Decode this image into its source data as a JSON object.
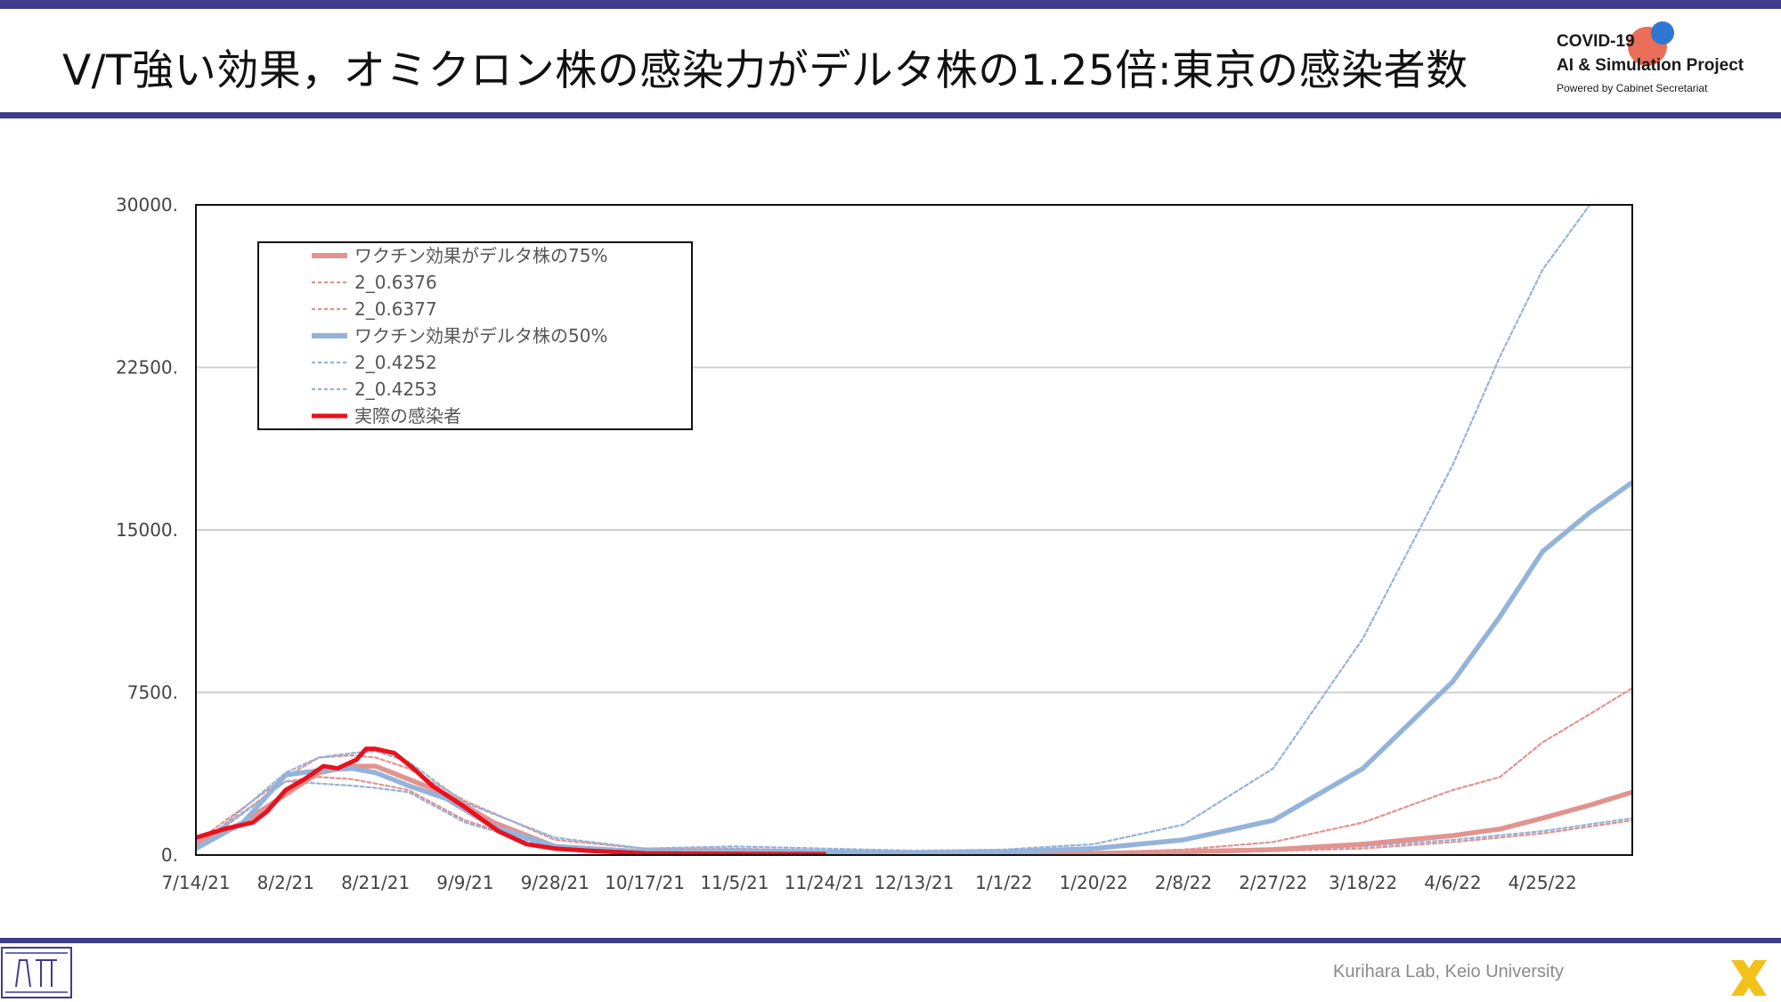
{
  "header": {
    "title": "V/T強い効果，オミクロン株の感染力がデルタ株の1.25倍:東京の感染者数",
    "logo_line1": "COVID-19",
    "logo_line2": "AI & Simulation Project",
    "logo_line3": "Powered by Cabinet Secretariat"
  },
  "footer": {
    "credit": "Kurihara Lab, Keio University"
  },
  "colors": {
    "accent_bar": "#3f3c8c",
    "red_series": "#e08f8c",
    "blue_series": "#97b5d9",
    "actual": "#e8111d"
  },
  "chart_data": {
    "type": "line",
    "title": "",
    "xlabel": "",
    "ylabel": "",
    "ylim": [
      0,
      30000
    ],
    "yticks": [
      "0.",
      "7500.",
      "15000.",
      "22500.",
      "30000."
    ],
    "ytick_values": [
      0,
      7500,
      15000,
      22500,
      30000
    ],
    "xticks": [
      "7/14/21",
      "8/2/21",
      "8/21/21",
      "9/9/21",
      "9/28/21",
      "10/17/21",
      "11/5/21",
      "11/24/21",
      "12/13/21",
      "1/1/22",
      "1/20/22",
      "2/8/22",
      "2/27/22",
      "3/18/22",
      "4/6/22",
      "4/25/22"
    ],
    "x_start": "7/14/21",
    "x_end": "5/14/22",
    "grid": true,
    "legend_position": "top-left",
    "series": [
      {
        "name": "ワクチン効果がデルタ株の75%",
        "color": "#e3938f",
        "style": "solid",
        "x": [
          "7/14/21",
          "7/24/21",
          "8/2/21",
          "8/9/21",
          "8/16/21",
          "8/21/21",
          "8/28/21",
          "9/5/21",
          "9/15/21",
          "9/28/21",
          "10/17/21",
          "11/5/21",
          "11/24/21",
          "12/13/21",
          "1/1/22",
          "1/20/22",
          "2/8/22",
          "2/27/22",
          "3/18/22",
          "4/6/22",
          "4/16/22",
          "4/25/22",
          "5/5/22",
          "5/14/22"
        ],
        "y": [
          500,
          1500,
          2800,
          3800,
          4100,
          4100,
          3500,
          2800,
          1500,
          400,
          100,
          100,
          80,
          60,
          60,
          80,
          150,
          250,
          500,
          900,
          1200,
          1700,
          2300,
          2900
        ]
      },
      {
        "name": "2_0.6376",
        "color": "#e3938f",
        "style": "dotted",
        "x": [
          "7/14/21",
          "8/2/21",
          "8/9/21",
          "8/16/21",
          "8/21/21",
          "8/28/21",
          "9/9/21",
          "9/28/21",
          "10/17/21",
          "11/5/21",
          "11/24/21",
          "12/13/21",
          "1/1/22",
          "1/20/22",
          "2/8/22",
          "2/27/22",
          "3/18/22",
          "4/6/22",
          "4/16/22",
          "4/25/22",
          "5/5/22",
          "5/14/22"
        ],
        "y": [
          600,
          3600,
          4500,
          4600,
          4500,
          4000,
          2500,
          700,
          300,
          300,
          200,
          100,
          80,
          120,
          250,
          600,
          1500,
          3000,
          3600,
          5200,
          6500,
          7700
        ]
      },
      {
        "name": "2_0.6377",
        "color": "#e3938f",
        "style": "dotted",
        "x": [
          "7/14/21",
          "8/2/21",
          "8/9/21",
          "8/16/21",
          "8/21/21",
          "8/28/21",
          "9/9/21",
          "9/28/21",
          "10/17/21",
          "11/5/21",
          "11/24/21",
          "12/13/21",
          "1/1/22",
          "1/20/22",
          "2/8/22",
          "2/27/22",
          "3/18/22",
          "4/6/22",
          "4/25/22",
          "5/14/22"
        ],
        "y": [
          400,
          3400,
          3600,
          3500,
          3300,
          3000,
          1600,
          300,
          100,
          100,
          80,
          60,
          50,
          60,
          100,
          180,
          300,
          600,
          1000,
          1600
        ]
      },
      {
        "name": "ワクチン効果がデルタ株の50%",
        "color": "#94b3da",
        "style": "solid",
        "x": [
          "7/14/21",
          "7/24/21",
          "8/2/21",
          "8/9/21",
          "8/16/21",
          "8/21/21",
          "8/28/21",
          "9/5/21",
          "9/15/21",
          "9/28/21",
          "10/17/21",
          "11/5/21",
          "11/24/21",
          "12/13/21",
          "1/1/22",
          "1/20/22",
          "2/8/22",
          "2/27/22",
          "3/18/22",
          "4/6/22",
          "4/16/22",
          "4/25/22",
          "5/5/22",
          "5/14/22"
        ],
        "y": [
          300,
          1500,
          3700,
          3900,
          4000,
          3800,
          3200,
          2600,
          1300,
          400,
          150,
          200,
          150,
          100,
          150,
          300,
          700,
          1600,
          4000,
          8000,
          11000,
          14000,
          15800,
          17200
        ]
      },
      {
        "name": "2_0.4252",
        "color": "#94b3da",
        "style": "dotted",
        "x": [
          "7/14/21",
          "8/2/21",
          "8/9/21",
          "8/16/21",
          "8/21/21",
          "8/28/21",
          "9/9/21",
          "9/28/21",
          "10/17/21",
          "11/5/21",
          "11/24/21",
          "12/13/21",
          "1/1/22",
          "1/20/22",
          "2/8/22",
          "2/27/22",
          "3/18/22",
          "4/6/22",
          "4/16/22",
          "4/25/22",
          "5/5/22",
          "5/14/22"
        ],
        "y": [
          300,
          3800,
          4500,
          4700,
          4800,
          4300,
          2400,
          800,
          300,
          400,
          300,
          200,
          250,
          500,
          1400,
          4000,
          10000,
          18000,
          23000,
          27000,
          30000,
          32000
        ]
      },
      {
        "name": "2_0.4253",
        "color": "#94b3da",
        "style": "dotted",
        "x": [
          "7/14/21",
          "8/2/21",
          "8/9/21",
          "8/16/21",
          "8/21/21",
          "8/28/21",
          "9/9/21",
          "9/28/21",
          "10/17/21",
          "11/5/21",
          "11/24/21",
          "12/13/21",
          "1/1/22",
          "1/20/22",
          "2/8/22",
          "2/27/22",
          "3/18/22",
          "4/6/22",
          "4/25/22",
          "5/14/22"
        ],
        "y": [
          300,
          3400,
          3300,
          3200,
          3100,
          2900,
          1500,
          300,
          100,
          100,
          80,
          60,
          60,
          80,
          120,
          200,
          400,
          700,
          1100,
          1700
        ]
      },
      {
        "name": "実際の感染者",
        "color": "#e8111d",
        "style": "solid-thick",
        "x": [
          "7/14/21",
          "7/20/21",
          "7/26/21",
          "7/29/21",
          "8/2/21",
          "8/6/21",
          "8/10/21",
          "8/13/21",
          "8/17/21",
          "8/19/21",
          "8/21/21",
          "8/25/21",
          "8/29/21",
          "9/2/21",
          "9/9/21",
          "9/16/21",
          "9/22/21",
          "9/28/21",
          "10/5/21",
          "10/17/21",
          "11/5/21",
          "11/24/21"
        ],
        "y": [
          800,
          1200,
          1500,
          2000,
          3000,
          3500,
          4100,
          4000,
          4400,
          4900,
          4900,
          4700,
          4000,
          3200,
          2200,
          1100,
          500,
          300,
          200,
          80,
          50,
          40
        ]
      }
    ]
  }
}
